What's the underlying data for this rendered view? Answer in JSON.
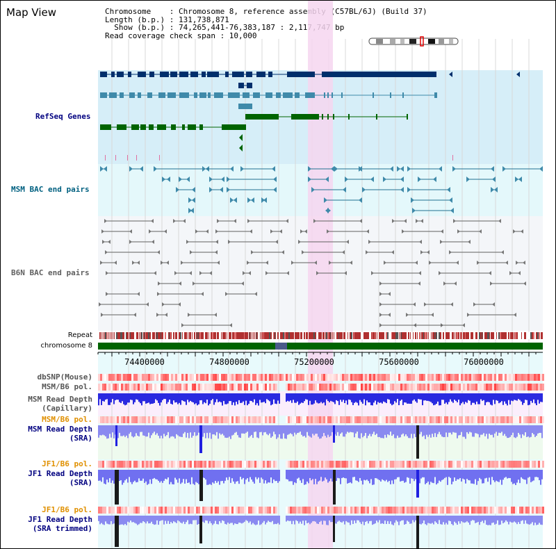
{
  "app": {
    "title": "Map View"
  },
  "header": {
    "line1": "Chromosome    : Chromosome 8, reference assembly (C57BL/6J) (Build 37)",
    "line2": "Length (b.p.) : 131,738,871",
    "line3": "  Show (b.p.) : 74,265,441-76,383,187 : 2,117,747 bp",
    "line4": "Read coverage check span : 10,000"
  },
  "tracks": {
    "refseq": "RefSeq Genes",
    "msm_bac": "MSM BAC end pairs",
    "b6n_bac": "B6N BAC end pairs",
    "repeat": "Repeat",
    "chromosome": "chromosome 8",
    "dbsnp": "dbSNP(Mouse)",
    "msm_b6_pol_1": "MSM/B6 pol.",
    "msm_read_depth_cap_1": "MSM Read Depth",
    "msm_read_depth_cap_2": "(Capillary)",
    "msm_b6_pol_2": "MSM/B6 pol.",
    "msm_read_depth_sra_1": "MSM Read Depth",
    "msm_read_depth_sra_2": "(SRA)",
    "jf1_b6_pol_1": "JF1/B6 pol.",
    "jf1_read_depth_sra_1": "JF1 Read Depth",
    "jf1_read_depth_sra_2": "(SRA)",
    "jf1_b6_pol_2": "JF1/B6 pol.",
    "jf1_read_depth_trim_1": "JF1 Read Depth",
    "jf1_read_depth_trim_2": "(SRA trimmed)"
  },
  "axis": {
    "ticks": [
      "74400000",
      "74800000",
      "75200000",
      "75600000",
      "76000000"
    ]
  },
  "colors": {
    "refseq_dark": "#002f6c",
    "refseq_mid": "#3f8aaa",
    "refseq_green": "#006400",
    "refseq_bg": "#d6eef8",
    "msm_bac_bg": "#e4f8fb",
    "b6n_bg": "#f4f6f9",
    "highlight": "#f6d6f0",
    "pol_red": "#e64040",
    "depth_blue": "#1f1fe0",
    "label_navy": "#000080",
    "label_teal": "#006080",
    "label_orange": "#e09000"
  }
}
